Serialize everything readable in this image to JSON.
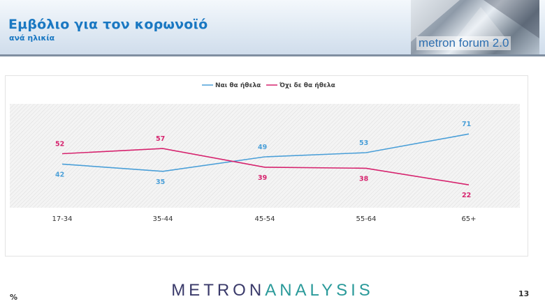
{
  "header": {
    "title": "Εμβόλιο για τον κορωνοϊό",
    "subtitle": "ανά ηλικία",
    "logo_text": "metron forum 2.0"
  },
  "footer": {
    "brand_part1": "METRON",
    "brand_part2": "ANALYSIS",
    "unit": "%",
    "page_number": "13"
  },
  "colors": {
    "yes": "#4a9fd8",
    "no": "#d6236e",
    "title": "#1a78c2"
  },
  "chart_data": {
    "type": "line",
    "categories": [
      "17-34",
      "35-44",
      "45-54",
      "55-64",
      "65+"
    ],
    "series": [
      {
        "name": "Ναι θα ήθελα",
        "values": [
          42,
          35,
          49,
          53,
          71
        ],
        "color": "#4a9fd8"
      },
      {
        "name": "Όχι δε θα ήθελα",
        "values": [
          52,
          57,
          39,
          38,
          22
        ],
        "color": "#d6236e"
      }
    ],
    "ylim": [
      0,
      100
    ],
    "legend_position": "top-center",
    "grid": false
  }
}
